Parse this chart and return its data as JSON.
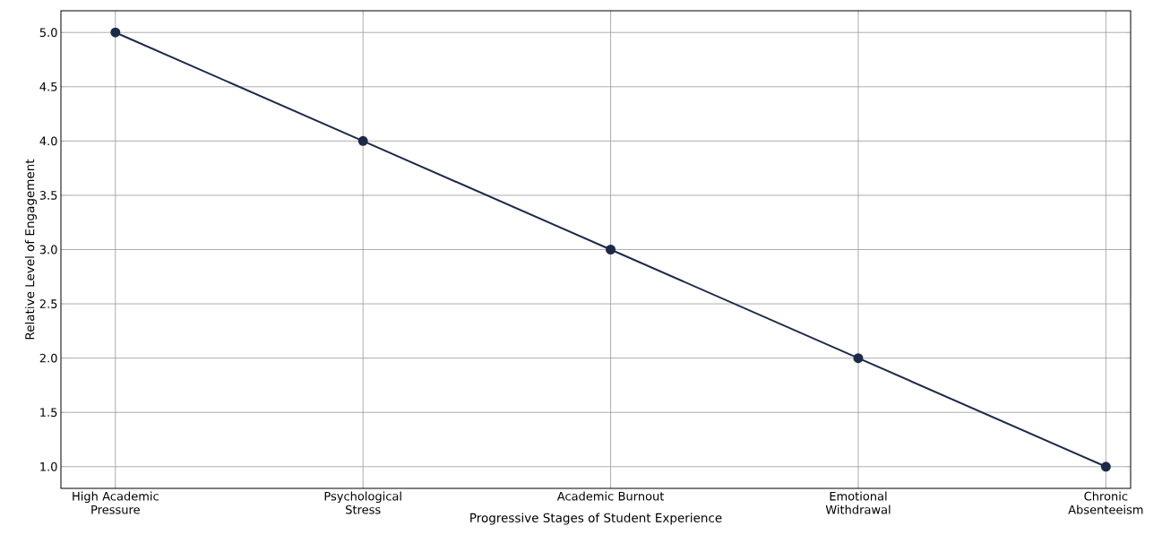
{
  "chart_data": {
    "type": "line",
    "xlabel": "Progressive Stages of Student Experience",
    "ylabel": "Relative Level of Engagement",
    "categories": [
      "High Academic Pressure",
      "Psychological Stress",
      "Academic Burnout",
      "Emotional Withdrawal",
      "Chronic Absenteeism"
    ],
    "values": [
      5,
      4,
      3,
      2,
      1
    ],
    "color": "#1c2a4a",
    "marker": "circle",
    "grid": true,
    "ylim": [
      0.8,
      5.2
    ],
    "yticks": [
      {
        "value": 1,
        "label": "1.0"
      },
      {
        "value": 1.5,
        "label": "1.5"
      },
      {
        "value": 2,
        "label": "2.0"
      },
      {
        "value": 2.5,
        "label": "2.5"
      },
      {
        "value": 3,
        "label": "3.0"
      },
      {
        "value": 3.5,
        "label": "3.5"
      },
      {
        "value": 4,
        "label": "4.0"
      },
      {
        "value": 4.5,
        "label": "4.5"
      },
      {
        "value": 5,
        "label": "5.0"
      }
    ]
  }
}
